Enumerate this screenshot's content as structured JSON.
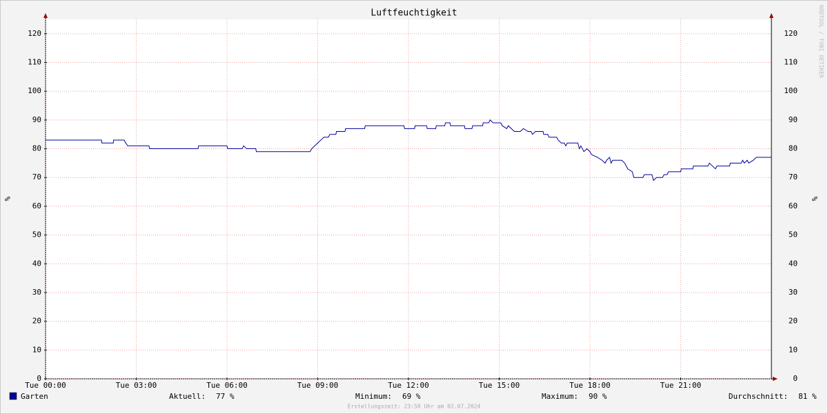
{
  "chart_data": {
    "type": "line",
    "title": "Luftfeuchtigkeit",
    "ylabel": "%",
    "watermark": "RRDTOOL / TOBI OETIKER",
    "footer": "Erstellungszeit: 23:58 Uhr am 02.07.2024",
    "xlim": [
      0,
      24
    ],
    "xticks": [
      {
        "value": 0,
        "label": "Tue 00:00"
      },
      {
        "value": 3,
        "label": "Tue 03:00"
      },
      {
        "value": 6,
        "label": "Tue 06:00"
      },
      {
        "value": 9,
        "label": "Tue 09:00"
      },
      {
        "value": 12,
        "label": "Tue 12:00"
      },
      {
        "value": 15,
        "label": "Tue 15:00"
      },
      {
        "value": 18,
        "label": "Tue 18:00"
      },
      {
        "value": 21,
        "label": "Tue 21:00"
      }
    ],
    "ylim": [
      0,
      125
    ],
    "yticks": [
      0,
      10,
      20,
      30,
      40,
      50,
      60,
      70,
      80,
      90,
      100,
      110,
      120
    ],
    "grid": true,
    "x": [
      0,
      1.85,
      1.86,
      2.24,
      2.25,
      2.6,
      2.65,
      2.72,
      3.42,
      3.44,
      5.04,
      5.06,
      6.0,
      6.02,
      6.5,
      6.55,
      6.65,
      6.95,
      6.97,
      8.75,
      8.8,
      8.9,
      9.0,
      9.1,
      9.2,
      9.35,
      9.4,
      9.6,
      9.62,
      9.9,
      9.92,
      10.55,
      10.57,
      11.85,
      11.87,
      12.2,
      12.22,
      12.6,
      12.62,
      12.9,
      12.92,
      13.2,
      13.22,
      13.37,
      13.39,
      13.85,
      13.87,
      14.1,
      14.12,
      14.45,
      14.47,
      14.65,
      14.7,
      14.8,
      15.05,
      15.1,
      15.25,
      15.3,
      15.4,
      15.5,
      15.7,
      15.8,
      15.95,
      16.05,
      16.1,
      16.2,
      16.45,
      16.47,
      16.6,
      16.65,
      16.9,
      16.95,
      17.05,
      17.15,
      17.2,
      17.25,
      17.6,
      17.65,
      17.7,
      17.8,
      17.9,
      18.0,
      18.05,
      18.25,
      18.4,
      18.5,
      18.55,
      18.65,
      18.7,
      18.75,
      19.05,
      19.15,
      19.25,
      19.4,
      19.45,
      19.75,
      19.8,
      20.05,
      20.1,
      20.2,
      20.4,
      20.45,
      20.55,
      20.6,
      21.0,
      21.02,
      21.4,
      21.42,
      21.9,
      21.95,
      22.05,
      22.15,
      22.2,
      22.62,
      22.64,
      23.0,
      23.05,
      23.1,
      23.2,
      23.25,
      23.4,
      23.5,
      24
    ],
    "series": [
      {
        "name": "Garten",
        "color": "#000099",
        "values": [
          83,
          83,
          82,
          82,
          83,
          83,
          82,
          81,
          81,
          80,
          80,
          81,
          81,
          80,
          80,
          81,
          80,
          80,
          79,
          79,
          80,
          81,
          82,
          83,
          84,
          84,
          85,
          85,
          86,
          86,
          87,
          87,
          88,
          88,
          87,
          87,
          88,
          88,
          87,
          87,
          88,
          88,
          89,
          89,
          88,
          88,
          87,
          87,
          88,
          88,
          89,
          89,
          90,
          89,
          89,
          88,
          87,
          88,
          87,
          86,
          86,
          87,
          86,
          86,
          85,
          86,
          86,
          85,
          85,
          84,
          84,
          83,
          82,
          82,
          81,
          82,
          82,
          80,
          81,
          79,
          80,
          79,
          78,
          77,
          76,
          75,
          76,
          77,
          75,
          76,
          76,
          75,
          73,
          72,
          70,
          70,
          71,
          71,
          69,
          70,
          70,
          71,
          71,
          72,
          72,
          73,
          73,
          74,
          74,
          75,
          74,
          73,
          74,
          74,
          75,
          75,
          76,
          75,
          76,
          75,
          76,
          77,
          77
        ]
      }
    ],
    "stats": [
      {
        "label": "Aktuell:",
        "value": "77 %"
      },
      {
        "label": "Minimum:",
        "value": "69 %"
      },
      {
        "label": "Maximum:",
        "value": "90 %"
      },
      {
        "label": "Durchschnitt:",
        "value": "81 %"
      }
    ]
  }
}
